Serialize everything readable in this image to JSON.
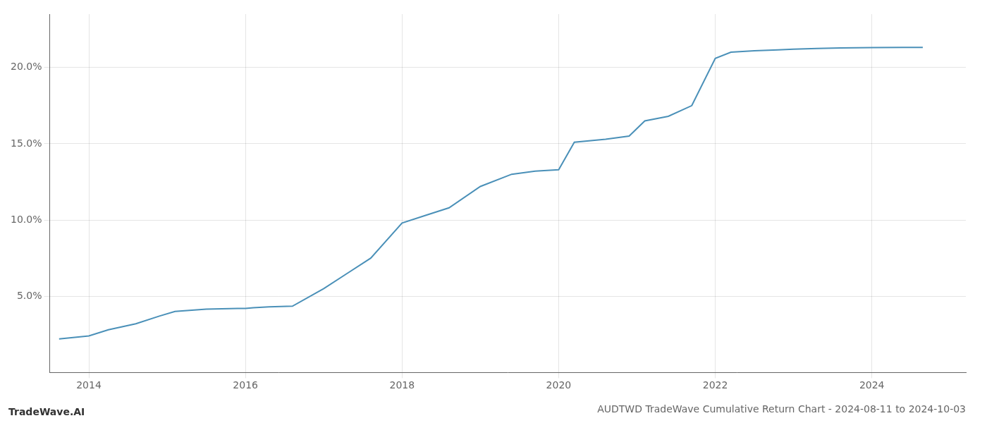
{
  "chart_data": {
    "type": "line",
    "title": "AUDTWD TradeWave Cumulative Return Chart - 2024-08-11 to 2024-10-03",
    "annotations": [
      "TradeWave.AI"
    ],
    "x": [
      2013.62,
      2014.0,
      2014.25,
      2014.6,
      2014.9,
      2015.1,
      2015.5,
      2015.9,
      2016.0,
      2016.1,
      2016.3,
      2016.6,
      2017.0,
      2017.3,
      2017.6,
      2018.0,
      2018.3,
      2018.6,
      2019.0,
      2019.4,
      2019.7,
      2020.0,
      2020.2,
      2020.6,
      2020.9,
      2021.1,
      2021.4,
      2021.7,
      2022.0,
      2022.2,
      2022.5,
      2022.8,
      2023.0,
      2023.3,
      2023.6,
      2024.0,
      2024.4,
      2024.65
    ],
    "values": [
      2.2,
      2.4,
      2.8,
      3.2,
      3.7,
      4.0,
      4.15,
      4.2,
      4.2,
      4.25,
      4.3,
      4.35,
      5.5,
      6.5,
      7.5,
      9.8,
      10.3,
      10.8,
      12.2,
      13.0,
      13.2,
      13.3,
      15.1,
      15.3,
      15.5,
      16.5,
      16.8,
      17.5,
      20.6,
      21.0,
      21.1,
      21.15,
      21.2,
      21.25,
      21.28,
      21.3,
      21.32,
      21.32
    ],
    "color": "#4a90b8",
    "xlim": [
      2013.5,
      2025.2
    ],
    "ylim": [
      0,
      23.5
    ],
    "xticks": [
      2014,
      2016,
      2018,
      2020,
      2022,
      2024
    ],
    "yticks": [
      {
        "value": 5.0,
        "label": "5.0%"
      },
      {
        "value": 10.0,
        "label": "10.0%"
      },
      {
        "value": 15.0,
        "label": "15.0%"
      },
      {
        "value": 20.0,
        "label": "20.0%"
      }
    ],
    "grid": true
  }
}
